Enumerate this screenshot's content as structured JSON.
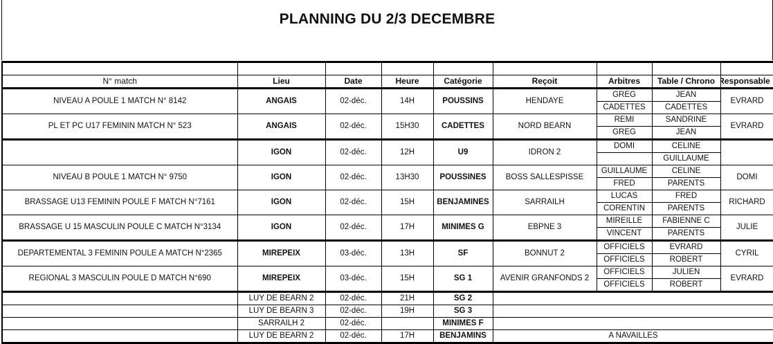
{
  "title": "PLANNING DU 2/3 DECEMBRE",
  "headers": {
    "match": "N° match",
    "lieu": "Lieu",
    "date": "Date",
    "heure": "Heure",
    "categorie": "Catégorie",
    "recoit": "Reçoit",
    "arbitres": "Arbitres",
    "table": "Table / Chrono",
    "responsable": "Responsable"
  },
  "matches": [
    {
      "match": "NIVEAU A POULE 1 MATCH N° 8142",
      "lieu": "ANGAIS",
      "date": "02-déc.",
      "heure": "14H",
      "categorie": "POUSSINS",
      "recoit": "HENDAYE",
      "arbitres": [
        "GREG",
        "CADETTES"
      ],
      "table": [
        "JEAN",
        "CADETTES"
      ],
      "responsable": "EVRARD"
    },
    {
      "match": "PL ET PC U17 FEMININ MATCH N° 523",
      "lieu": "ANGAIS",
      "date": "02-déc.",
      "heure": "15H30",
      "categorie": "CADETTES",
      "recoit": "NORD BEARN",
      "arbitres": [
        "REMI",
        "GREG"
      ],
      "table": [
        "SANDRINE",
        "JEAN"
      ],
      "responsable": "EVRARD"
    },
    {
      "match": "",
      "lieu": "IGON",
      "date": "02-déc.",
      "heure": "12H",
      "categorie": "U9",
      "recoit": "IDRON 2",
      "arbitres": [
        "DOMI",
        ""
      ],
      "table": [
        "CELINE",
        "GUILLAUME"
      ],
      "responsable": ""
    },
    {
      "match": "NIVEAU B POULE 1 MATCH N° 9750",
      "lieu": "IGON",
      "date": "02-déc.",
      "heure": "13H30",
      "categorie": "POUSSINES",
      "recoit": "BOSS SALLESPISSE",
      "arbitres": [
        "GUILLAUME",
        "FRED"
      ],
      "table": [
        "CELINE",
        "PARENTS"
      ],
      "responsable": "DOMI"
    },
    {
      "match": "BRASSAGE U13 FEMININ POULE F MATCH N°7161",
      "lieu": "IGON",
      "date": "02-déc.",
      "heure": "15H",
      "categorie": "BENJAMINES",
      "recoit": "SARRAILH",
      "arbitres": [
        "LUCAS",
        "CORENTIN"
      ],
      "table": [
        "FRED",
        "PARENTS"
      ],
      "responsable": "RICHARD"
    },
    {
      "match": "BRASSAGE U 15 MASCULIN POULE C MATCH N°3134",
      "lieu": "IGON",
      "date": "02-déc.",
      "heure": "17H",
      "categorie": "MINIMES G",
      "recoit": "EBPNE 3",
      "arbitres": [
        "MIREILLE",
        "VINCENT"
      ],
      "table": [
        "FABIENNE C",
        "PARENTS"
      ],
      "responsable": "JULIE"
    },
    {
      "match": "DEPARTEMENTAL 3 FEMININ POULE A MATCH N°2365",
      "lieu": "MIREPEIX",
      "date": "03-déc.",
      "heure": "13H",
      "categorie": "SF",
      "recoit": "BONNUT 2",
      "arbitres": [
        "OFFICIELS",
        "OFFICIELS"
      ],
      "table": [
        "EVRARD",
        "ROBERT"
      ],
      "responsable": "CYRIL"
    },
    {
      "match": "REGIONAL 3 MASCULIN POULE D MATCH N°690",
      "lieu": "MIREPEIX",
      "date": "03-déc.",
      "heure": "15H",
      "categorie": "SG 1",
      "recoit": "AVENIR GRANFONDS 2",
      "arbitres": [
        "OFFICIELS",
        "OFFICIELS"
      ],
      "table": [
        "JULIEN",
        "ROBERT"
      ],
      "responsable": "EVRARD"
    }
  ],
  "away": [
    {
      "lieu": "LUY DE BEARN 2",
      "date": "02-déc.",
      "heure": "21H",
      "categorie": "SG 2",
      "note": ""
    },
    {
      "lieu": "LUY DE BEARN 3",
      "date": "02-déc.",
      "heure": "19H",
      "categorie": "SG 3",
      "note": ""
    },
    {
      "lieu": "SARRAILH 2",
      "date": "02-déc.",
      "heure": "",
      "categorie": "MINIMES F",
      "note": ""
    },
    {
      "lieu": "LUY DE BEARN 2",
      "date": "02-déc.",
      "heure": "17H",
      "categorie": "BENJAMINS",
      "note": "A NAVAILLES"
    }
  ]
}
